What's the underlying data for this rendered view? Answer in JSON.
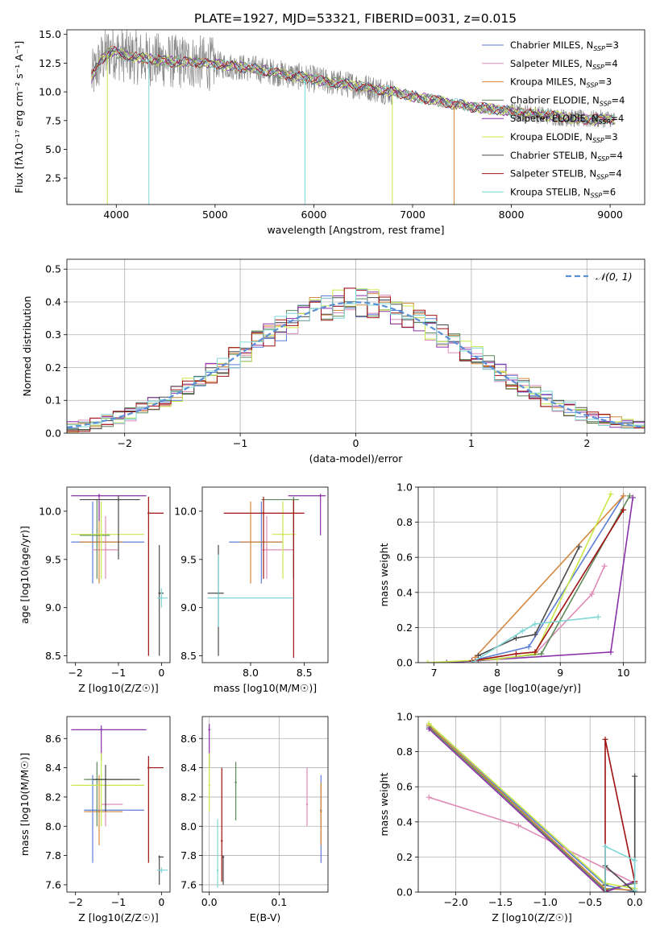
{
  "figure": {
    "title": "PLATE=1927, MJD=53321, FIBERID=0031, z=0.015"
  },
  "models": [
    {
      "label": "Chabrier MILES, N",
      "sub": "SSP",
      "n": "=3",
      "color": "#5b7fd6"
    },
    {
      "label": "Salpeter MILES, N",
      "sub": "SSP",
      "n": "=4",
      "color": "#e08cb8"
    },
    {
      "label": "Kroupa MILES, N",
      "sub": "SSP",
      "n": "=3",
      "color": "#d4883e"
    },
    {
      "label": "Chabrier ELODIE, N",
      "sub": "SSP",
      "n": "=4",
      "color": "#5e8a5a"
    },
    {
      "label": "Salpeter ELODIE, N",
      "sub": "SSP",
      "n": "=4",
      "color": "#8a30a8"
    },
    {
      "label": "Kroupa ELODIE, N",
      "sub": "SSP",
      "n": "=3",
      "color": "#c9e84a"
    },
    {
      "label": "Chabrier STELIB, N",
      "sub": "SSP",
      "n": "=4",
      "color": "#4a4a4a"
    },
    {
      "label": "Salpeter STELIB, N",
      "sub": "SSP",
      "n": "=4",
      "color": "#a01010"
    },
    {
      "label": "Kroupa STELIB, N",
      "sub": "SSP",
      "n": "=6",
      "color": "#7fd6d6"
    }
  ],
  "chart_data": [
    {
      "type": "line",
      "id": "spectrum",
      "xlabel": "wavelength [Angstrom, rest frame]",
      "ylabel": "Flux [fλ10⁻¹⁷ erg cm⁻² s⁻¹ A⁻¹]",
      "xlim": [
        3500,
        9350
      ],
      "ylim": [
        0.2,
        15.4
      ],
      "xticks": [
        4000,
        5000,
        6000,
        7000,
        8000,
        9000
      ],
      "yticks": [
        2.5,
        5.0,
        7.5,
        10.0,
        12.5,
        15.0
      ],
      "data_series": {
        "name": "data",
        "color": "#888888"
      },
      "continuum": {
        "x": [
          3750,
          3850,
          3950,
          4050,
          4200,
          4400,
          4600,
          4800,
          5000,
          5200,
          5400,
          5600,
          5800,
          6000,
          6200,
          6400,
          6600,
          6800,
          7000,
          7200,
          7400,
          7600,
          7800,
          8000,
          8200,
          8400,
          8600,
          8800,
          9000,
          9050
        ],
        "y": [
          11.2,
          12.8,
          13.6,
          13.2,
          13.0,
          12.8,
          12.6,
          12.6,
          12.4,
          12.2,
          12.0,
          11.7,
          11.4,
          11.1,
          10.8,
          10.6,
          10.3,
          10.0,
          9.6,
          9.3,
          9.0,
          8.7,
          8.5,
          8.3,
          8.1,
          7.9,
          7.7,
          7.6,
          7.7,
          7.5
        ]
      },
      "dropouts": [
        {
          "x": 3910,
          "series": 5
        },
        {
          "x": 4330,
          "series": 8
        },
        {
          "x": 5910,
          "series": 8
        },
        {
          "x": 6795,
          "series": 5
        },
        {
          "x": 7420,
          "series": 2
        }
      ]
    },
    {
      "type": "histogram",
      "id": "residuals",
      "xlabel": "(data-model)/error",
      "ylabel": "Normed distribution",
      "xlim": [
        -2.5,
        2.5
      ],
      "ylim": [
        0,
        0.53
      ],
      "xticks": [
        -2,
        -1,
        0,
        1,
        2
      ],
      "yticks": [
        0.0,
        0.1,
        0.2,
        0.3,
        0.4,
        0.5
      ],
      "bin_width": 0.1,
      "gaussian_label": "𝒩(0, 1)",
      "gaussian_color": "#5b8fd6",
      "grid": true
    },
    {
      "type": "scatter",
      "id": "z-age",
      "xlabel": "Z [log10(Z/Z☉)]",
      "ylabel": "age [log10(age/yr)]",
      "xlim": [
        -2.2,
        0.2
      ],
      "ylim": [
        8.43,
        10.25
      ],
      "xticks": [
        -2,
        -1,
        0
      ],
      "yticks": [
        8.5,
        9.0,
        9.5,
        10.0
      ],
      "points": [
        {
          "s": 0,
          "x": -1.6,
          "y": 9.68,
          "xe": [
            -2.1,
            -0.4
          ],
          "ye": [
            9.25,
            10.1
          ]
        },
        {
          "s": 1,
          "x": -1.3,
          "y": 9.6,
          "xe": [
            -1.6,
            -1.0
          ],
          "ye": [
            9.3,
            9.95
          ]
        },
        {
          "s": 2,
          "x": -1.45,
          "y": 9.68,
          "xe": [
            -1.9,
            -0.9
          ],
          "ye": [
            9.25,
            10.1
          ]
        },
        {
          "s": 3,
          "x": -1.5,
          "y": 9.75,
          "xe": [
            -1.9,
            -1.2
          ],
          "ye": [
            9.3,
            10.12
          ]
        },
        {
          "s": 4,
          "x": -1.45,
          "y": 10.16,
          "xe": [
            -2.1,
            -0.35
          ],
          "ye": [
            9.9,
            10.18
          ]
        },
        {
          "s": 5,
          "x": -1.4,
          "y": 9.76,
          "xe": [
            -2.1,
            -0.4
          ],
          "ye": [
            9.3,
            10.1
          ]
        },
        {
          "s": 6,
          "x": -1.0,
          "y": 10.12,
          "xe": [
            -1.9,
            -0.5
          ],
          "ye": [
            9.5,
            10.16
          ]
        },
        {
          "s": 7,
          "x": -0.3,
          "y": 9.98,
          "xe": [
            -0.3,
            0.05
          ],
          "ye": [
            8.5,
            10.15
          ]
        },
        {
          "s": 6,
          "x": -0.05,
          "y": 9.15,
          "xe": [
            -0.05,
            0.05
          ],
          "ye": [
            8.5,
            9.65
          ]
        },
        {
          "s": 8,
          "x": 0.0,
          "y": 9.1,
          "xe": [
            -0.1,
            0.15
          ],
          "ye": [
            9.0,
            9.2
          ]
        }
      ]
    },
    {
      "type": "scatter",
      "id": "mass-age",
      "xlabel": "mass [log10(M/M☉)]",
      "ylabel": "",
      "xlim": [
        7.55,
        8.72
      ],
      "ylim": [
        8.43,
        10.25
      ],
      "xticks": [
        8.0,
        8.5
      ],
      "yticks": [
        8.5,
        9.0,
        9.5,
        10.0
      ],
      "points": [
        {
          "s": 0,
          "x": 8.1,
          "y": 9.68,
          "xe": [
            7.8,
            8.3
          ],
          "ye": [
            9.25,
            10.1
          ]
        },
        {
          "s": 1,
          "x": 8.15,
          "y": 9.6,
          "xe": [
            8.1,
            8.4
          ],
          "ye": [
            9.3,
            9.95
          ]
        },
        {
          "s": 2,
          "x": 8.0,
          "y": 9.68,
          "xe": [
            7.9,
            8.3
          ],
          "ye": [
            9.25,
            10.1
          ]
        },
        {
          "s": 3,
          "x": 8.4,
          "y": 10.12,
          "xe": [
            8.1,
            8.45
          ],
          "ye": [
            9.3,
            10.15
          ]
        },
        {
          "s": 4,
          "x": 8.65,
          "y": 10.16,
          "xe": [
            8.35,
            8.7
          ],
          "ye": [
            9.75,
            10.18
          ]
        },
        {
          "s": 5,
          "x": 8.3,
          "y": 9.76,
          "xe": [
            8.2,
            8.42
          ],
          "ye": [
            9.3,
            10.1
          ]
        },
        {
          "s": 6,
          "x": 7.7,
          "y": 9.15,
          "xe": [
            7.6,
            7.75
          ],
          "ye": [
            8.5,
            9.65
          ]
        },
        {
          "s": 7,
          "x": 8.12,
          "y": 9.98,
          "xe": [
            7.75,
            8.5
          ],
          "ye": [
            9.3,
            10.15
          ]
        },
        {
          "s": 7,
          "x": 8.4,
          "y": 9.98,
          "xe": [
            8.4,
            8.4
          ],
          "ye": [
            8.48,
            10.12
          ]
        },
        {
          "s": 8,
          "x": 7.7,
          "y": 9.1,
          "xe": [
            7.6,
            8.4
          ],
          "ye": [
            8.8,
            9.55
          ]
        }
      ]
    },
    {
      "type": "line",
      "id": "age-weight",
      "xlabel": "age [log10(age/yr)]",
      "ylabel": "mass weight",
      "xlim": [
        6.75,
        10.35
      ],
      "ylim": [
        0,
        1.0
      ],
      "xticks": [
        7,
        8,
        9,
        10
      ],
      "yticks": [
        0.0,
        0.2,
        0.4,
        0.6,
        0.8,
        1.0
      ],
      "grid": true,
      "series": [
        {
          "s": 0,
          "x": [
            7.7,
            8.5,
            10.0
          ],
          "y": [
            0.02,
            0.09,
            0.95
          ]
        },
        {
          "s": 1,
          "x": [
            8.6,
            9.5,
            9.7
          ],
          "y": [
            0.05,
            0.39,
            0.55
          ]
        },
        {
          "s": 2,
          "x": [
            7.65,
            10.0
          ],
          "y": [
            0.03,
            0.95
          ]
        },
        {
          "s": 3,
          "x": [
            7.7,
            8.7,
            10.1
          ],
          "y": [
            0.01,
            0.05,
            0.95
          ]
        },
        {
          "s": 4,
          "x": [
            7.2,
            9.8,
            10.15
          ],
          "y": [
            0.0,
            0.06,
            0.94
          ]
        },
        {
          "s": 5,
          "x": [
            6.9,
            8.0,
            8.6,
            9.8
          ],
          "y": [
            0.0,
            0.02,
            0.05,
            0.96
          ]
        },
        {
          "s": 6,
          "x": [
            7.7,
            8.3,
            8.6,
            9.3
          ],
          "y": [
            0.04,
            0.14,
            0.16,
            0.66
          ]
        },
        {
          "s": 7,
          "x": [
            7.6,
            8.3,
            8.6,
            10.0
          ],
          "y": [
            0.01,
            0.05,
            0.06,
            0.87
          ]
        },
        {
          "s": 8,
          "x": [
            7.6,
            8.4,
            8.6,
            9.6
          ],
          "y": [
            0.0,
            0.18,
            0.22,
            0.26
          ]
        }
      ]
    },
    {
      "type": "scatter",
      "id": "z-mass",
      "xlabel": "Z [log10(Z/Z☉)]",
      "ylabel": "mass [log10(M/M☉)]",
      "xlim": [
        -2.2,
        0.2
      ],
      "ylim": [
        7.55,
        8.75
      ],
      "xticks": [
        -2,
        -1,
        0
      ],
      "yticks": [
        7.6,
        7.8,
        8.0,
        8.2,
        8.4,
        8.6
      ],
      "points": [
        {
          "s": 0,
          "x": -1.6,
          "y": 8.11,
          "xe": [
            -1.8,
            -0.4
          ],
          "ye": [
            7.75,
            8.35
          ]
        },
        {
          "s": 1,
          "x": -1.3,
          "y": 8.15,
          "xe": [
            -1.4,
            -0.9
          ],
          "ye": [
            8.0,
            8.3
          ]
        },
        {
          "s": 2,
          "x": -1.45,
          "y": 8.1,
          "xe": [
            -1.8,
            -0.9
          ],
          "ye": [
            7.87,
            8.35
          ]
        },
        {
          "s": 3,
          "x": -1.5,
          "y": 8.32,
          "xe": [
            -1.8,
            -0.9
          ],
          "ye": [
            8.0,
            8.44
          ]
        },
        {
          "s": 4,
          "x": -1.4,
          "y": 8.66,
          "xe": [
            -2.1,
            -0.35
          ],
          "ye": [
            8.45,
            8.69
          ]
        },
        {
          "s": 5,
          "x": -1.4,
          "y": 8.28,
          "xe": [
            -2.1,
            -0.4
          ],
          "ye": [
            8.0,
            8.5
          ]
        },
        {
          "s": 6,
          "x": -1.3,
          "y": 8.32,
          "xe": [
            -1.6,
            -0.5
          ],
          "ye": [
            8.1,
            8.42
          ]
        },
        {
          "s": 7,
          "x": -0.3,
          "y": 8.4,
          "xe": [
            -0.3,
            0.05
          ],
          "ye": [
            7.75,
            8.48
          ]
        },
        {
          "s": 6,
          "x": -0.05,
          "y": 7.79,
          "xe": [
            -0.05,
            0.05
          ],
          "ye": [
            7.6,
            7.8
          ]
        },
        {
          "s": 8,
          "x": 0.0,
          "y": 7.7,
          "xe": [
            -0.1,
            0.15
          ],
          "ye": [
            7.68,
            7.72
          ]
        }
      ]
    },
    {
      "type": "scatter",
      "id": "ebv-mass",
      "xlabel": "E(B-V)",
      "ylabel": "",
      "xlim": [
        -0.01,
        0.17
      ],
      "ylim": [
        7.55,
        8.75
      ],
      "xticks": [
        0.0,
        0.1
      ],
      "yticks": [
        7.6,
        7.8,
        8.0,
        8.2,
        8.4,
        8.6
      ],
      "grid": true,
      "points": [
        {
          "s": 0,
          "x": 0.16,
          "y": 8.11,
          "ye": [
            7.75,
            8.35
          ]
        },
        {
          "s": 1,
          "x": 0.14,
          "y": 8.15,
          "ye": [
            8.0,
            8.4
          ]
        },
        {
          "s": 2,
          "x": 0.16,
          "y": 8.1,
          "ye": [
            7.87,
            8.3
          ]
        },
        {
          "s": 3,
          "x": 0.038,
          "y": 8.3,
          "ye": [
            8.04,
            8.44
          ]
        },
        {
          "s": 4,
          "x": 0.0,
          "y": 8.66,
          "ye": [
            8.4,
            8.7
          ]
        },
        {
          "s": 5,
          "x": 0.0,
          "y": 8.28,
          "ye": [
            8.1,
            8.5
          ]
        },
        {
          "s": 6,
          "x": 0.02,
          "y": 7.79,
          "ye": [
            7.6,
            7.8
          ]
        },
        {
          "s": 7,
          "x": 0.018,
          "y": 7.9,
          "ye": [
            7.62,
            8.4
          ]
        },
        {
          "s": 8,
          "x": 0.012,
          "y": 7.7,
          "ye": [
            7.58,
            8.05
          ]
        }
      ]
    },
    {
      "type": "line",
      "id": "z-weight",
      "xlabel": "Z [log10(Z/Z☉)]",
      "ylabel": "mass weight",
      "xlim": [
        -2.42,
        0.12
      ],
      "ylim": [
        0,
        1.0
      ],
      "xticks": [
        -2.0,
        -1.5,
        -1.0,
        -0.5,
        0.0
      ],
      "yticks": [
        0.0,
        0.2,
        0.4,
        0.6,
        0.8,
        1.0
      ],
      "grid": true,
      "series": [
        {
          "s": 0,
          "x": [
            -2.3,
            -0.33,
            0.0
          ],
          "y": [
            0.95,
            0.04,
            0.0
          ]
        },
        {
          "s": 1,
          "x": [
            -2.3,
            -1.3,
            0.0
          ],
          "y": [
            0.54,
            0.38,
            0.05
          ]
        },
        {
          "s": 2,
          "x": [
            -2.3,
            -0.33,
            0.0
          ],
          "y": [
            0.95,
            0.02,
            0.01
          ]
        },
        {
          "s": 3,
          "x": [
            -2.3,
            -0.33,
            0.0
          ],
          "y": [
            0.94,
            0.01,
            0.05
          ]
        },
        {
          "s": 4,
          "x": [
            -2.3,
            -0.33,
            0.0
          ],
          "y": [
            0.93,
            0.0,
            0.06
          ]
        },
        {
          "s": 5,
          "x": [
            -2.3,
            -0.33,
            0.0
          ],
          "y": [
            0.96,
            0.05,
            0.02
          ]
        },
        {
          "s": 6,
          "x": [
            -0.33,
            -0.33,
            0.0,
            0.0
          ],
          "y": [
            0.04,
            0.15,
            0.0,
            0.66
          ]
        },
        {
          "s": 7,
          "x": [
            -0.33,
            -0.33,
            0.0
          ],
          "y": [
            0.01,
            0.87,
            0.06
          ]
        },
        {
          "s": 8,
          "x": [
            -0.33,
            -0.33,
            0.0,
            0.0
          ],
          "y": [
            0.0,
            0.26,
            0.18,
            0.01
          ]
        }
      ]
    }
  ]
}
